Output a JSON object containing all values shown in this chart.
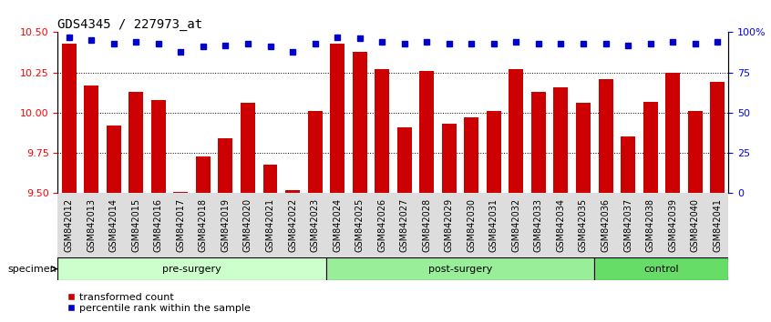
{
  "title": "GDS4345 / 227973_at",
  "categories": [
    "GSM842012",
    "GSM842013",
    "GSM842014",
    "GSM842015",
    "GSM842016",
    "GSM842017",
    "GSM842018",
    "GSM842019",
    "GSM842020",
    "GSM842021",
    "GSM842022",
    "GSM842023",
    "GSM842024",
    "GSM842025",
    "GSM842026",
    "GSM842027",
    "GSM842028",
    "GSM842029",
    "GSM842030",
    "GSM842031",
    "GSM842032",
    "GSM842033",
    "GSM842034",
    "GSM842035",
    "GSM842036",
    "GSM842037",
    "GSM842038",
    "GSM842039",
    "GSM842040",
    "GSM842041"
  ],
  "bar_values": [
    10.43,
    10.17,
    9.92,
    10.13,
    10.08,
    9.51,
    9.73,
    9.84,
    10.06,
    9.68,
    9.52,
    10.01,
    10.43,
    10.38,
    10.27,
    9.91,
    10.26,
    9.93,
    9.97,
    10.01,
    10.27,
    10.13,
    10.16,
    10.06,
    10.21,
    9.85,
    10.07,
    10.25,
    10.01,
    10.19
  ],
  "percentile_values": [
    97,
    95,
    93,
    94,
    93,
    88,
    91,
    92,
    93,
    91,
    88,
    93,
    97,
    96,
    94,
    93,
    94,
    93,
    93,
    93,
    94,
    93,
    93,
    93,
    93,
    92,
    93,
    94,
    93,
    94
  ],
  "bar_color": "#cc0000",
  "percentile_color": "#0000cc",
  "ylim_left": [
    9.5,
    10.5
  ],
  "ylim_right": [
    0,
    100
  ],
  "yticks_left": [
    9.5,
    9.75,
    10.0,
    10.25,
    10.5
  ],
  "yticks_right": [
    0,
    25,
    50,
    75,
    100
  ],
  "ytick_labels_right": [
    "0",
    "25",
    "50",
    "75",
    "100%"
  ],
  "groups": [
    {
      "label": "pre-surgery",
      "start": 0,
      "end": 12,
      "color": "#ccffcc"
    },
    {
      "label": "post-surgery",
      "start": 12,
      "end": 24,
      "color": "#99ee99"
    },
    {
      "label": "control",
      "start": 24,
      "end": 30,
      "color": "#66dd66"
    }
  ],
  "specimen_label": "specimen",
  "legend_items": [
    {
      "label": "transformed count",
      "color": "#cc0000"
    },
    {
      "label": "percentile rank within the sample",
      "color": "#0000cc"
    }
  ],
  "background_color": "#ffffff",
  "title_fontsize": 10,
  "tick_fontsize": 7,
  "bar_width": 0.65
}
